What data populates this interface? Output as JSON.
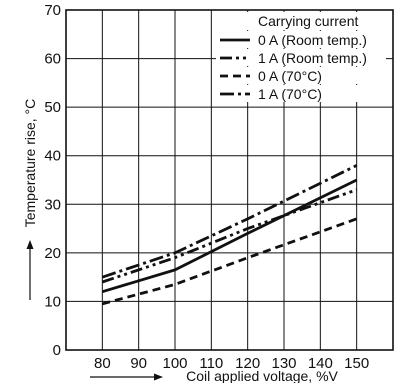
{
  "chart_data": {
    "type": "line",
    "title": "",
    "xlabel": "Coil applied voltage, %V",
    "ylabel": "Temperature rise, °C",
    "xlim": [
      70,
      160
    ],
    "ylim": [
      0,
      70
    ],
    "x_ticks": [
      80,
      90,
      100,
      110,
      120,
      130,
      140,
      150
    ],
    "y_ticks": [
      0,
      10,
      20,
      30,
      40,
      50,
      60,
      70
    ],
    "grid": true,
    "legend": {
      "title": "Carrying current",
      "placement": "top-right"
    },
    "series": [
      {
        "name": "0 A (Room temp.)",
        "style": "solid",
        "x": [
          80,
          100,
          120,
          150
        ],
        "values": [
          12,
          16.5,
          24,
          35
        ]
      },
      {
        "name": "1 A (Room temp.)",
        "style": "dash-dot-dot",
        "x": [
          80,
          100,
          120,
          150
        ],
        "values": [
          14,
          19,
          25,
          33
        ]
      },
      {
        "name": "0 A (70°C)",
        "style": "dash",
        "x": [
          80,
          100,
          120,
          150
        ],
        "values": [
          9.5,
          13.5,
          19,
          27
        ]
      },
      {
        "name": "1 A (70°C)",
        "style": "dash-dot",
        "x": [
          80,
          100,
          120,
          150
        ],
        "values": [
          15,
          20,
          27,
          38
        ]
      }
    ]
  }
}
